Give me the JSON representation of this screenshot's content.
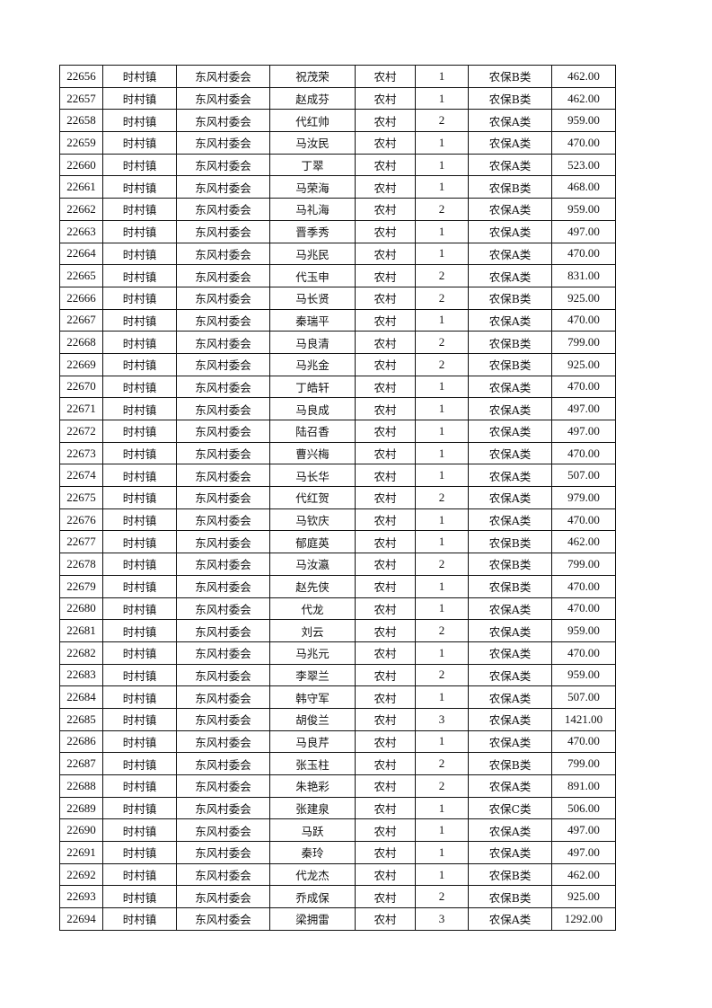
{
  "rows": [
    [
      "22656",
      "时村镇",
      "东风村委会",
      "祝茂荣",
      "农村",
      "1",
      "农保B类",
      "462.00"
    ],
    [
      "22657",
      "时村镇",
      "东风村委会",
      "赵成芬",
      "农村",
      "1",
      "农保B类",
      "462.00"
    ],
    [
      "22658",
      "时村镇",
      "东风村委会",
      "代红帅",
      "农村",
      "2",
      "农保A类",
      "959.00"
    ],
    [
      "22659",
      "时村镇",
      "东风村委会",
      "马汝民",
      "农村",
      "1",
      "农保A类",
      "470.00"
    ],
    [
      "22660",
      "时村镇",
      "东风村委会",
      "丁翠",
      "农村",
      "1",
      "农保A类",
      "523.00"
    ],
    [
      "22661",
      "时村镇",
      "东风村委会",
      "马荣海",
      "农村",
      "1",
      "农保B类",
      "468.00"
    ],
    [
      "22662",
      "时村镇",
      "东风村委会",
      "马礼海",
      "农村",
      "2",
      "农保A类",
      "959.00"
    ],
    [
      "22663",
      "时村镇",
      "东风村委会",
      "晋季秀",
      "农村",
      "1",
      "农保A类",
      "497.00"
    ],
    [
      "22664",
      "时村镇",
      "东风村委会",
      "马兆民",
      "农村",
      "1",
      "农保A类",
      "470.00"
    ],
    [
      "22665",
      "时村镇",
      "东风村委会",
      "代玉申",
      "农村",
      "2",
      "农保A类",
      "831.00"
    ],
    [
      "22666",
      "时村镇",
      "东风村委会",
      "马长贤",
      "农村",
      "2",
      "农保B类",
      "925.00"
    ],
    [
      "22667",
      "时村镇",
      "东风村委会",
      "秦瑞平",
      "农村",
      "1",
      "农保A类",
      "470.00"
    ],
    [
      "22668",
      "时村镇",
      "东风村委会",
      "马良清",
      "农村",
      "2",
      "农保B类",
      "799.00"
    ],
    [
      "22669",
      "时村镇",
      "东风村委会",
      "马兆金",
      "农村",
      "2",
      "农保B类",
      "925.00"
    ],
    [
      "22670",
      "时村镇",
      "东风村委会",
      "丁皓轩",
      "农村",
      "1",
      "农保A类",
      "470.00"
    ],
    [
      "22671",
      "时村镇",
      "东风村委会",
      "马良成",
      "农村",
      "1",
      "农保A类",
      "497.00"
    ],
    [
      "22672",
      "时村镇",
      "东风村委会",
      "陆召香",
      "农村",
      "1",
      "农保A类",
      "497.00"
    ],
    [
      "22673",
      "时村镇",
      "东风村委会",
      "曹兴梅",
      "农村",
      "1",
      "农保A类",
      "470.00"
    ],
    [
      "22674",
      "时村镇",
      "东风村委会",
      "马长华",
      "农村",
      "1",
      "农保A类",
      "507.00"
    ],
    [
      "22675",
      "时村镇",
      "东风村委会",
      "代红贺",
      "农村",
      "2",
      "农保A类",
      "979.00"
    ],
    [
      "22676",
      "时村镇",
      "东风村委会",
      "马钦庆",
      "农村",
      "1",
      "农保A类",
      "470.00"
    ],
    [
      "22677",
      "时村镇",
      "东风村委会",
      "郁庭英",
      "农村",
      "1",
      "农保B类",
      "462.00"
    ],
    [
      "22678",
      "时村镇",
      "东风村委会",
      "马汝瀛",
      "农村",
      "2",
      "农保B类",
      "799.00"
    ],
    [
      "22679",
      "时村镇",
      "东风村委会",
      "赵先侠",
      "农村",
      "1",
      "农保B类",
      "470.00"
    ],
    [
      "22680",
      "时村镇",
      "东风村委会",
      "代龙",
      "农村",
      "1",
      "农保A类",
      "470.00"
    ],
    [
      "22681",
      "时村镇",
      "东风村委会",
      "刘云",
      "农村",
      "2",
      "农保A类",
      "959.00"
    ],
    [
      "22682",
      "时村镇",
      "东风村委会",
      "马兆元",
      "农村",
      "1",
      "农保A类",
      "470.00"
    ],
    [
      "22683",
      "时村镇",
      "东风村委会",
      "李翠兰",
      "农村",
      "2",
      "农保A类",
      "959.00"
    ],
    [
      "22684",
      "时村镇",
      "东风村委会",
      "韩守军",
      "农村",
      "1",
      "农保A类",
      "507.00"
    ],
    [
      "22685",
      "时村镇",
      "东风村委会",
      "胡俊兰",
      "农村",
      "3",
      "农保A类",
      "1421.00"
    ],
    [
      "22686",
      "时村镇",
      "东风村委会",
      "马良芹",
      "农村",
      "1",
      "农保A类",
      "470.00"
    ],
    [
      "22687",
      "时村镇",
      "东风村委会",
      "张玉柱",
      "农村",
      "2",
      "农保B类",
      "799.00"
    ],
    [
      "22688",
      "时村镇",
      "东风村委会",
      "朱艳彩",
      "农村",
      "2",
      "农保A类",
      "891.00"
    ],
    [
      "22689",
      "时村镇",
      "东风村委会",
      "张建泉",
      "农村",
      "1",
      "农保C类",
      "506.00"
    ],
    [
      "22690",
      "时村镇",
      "东风村委会",
      "马跃",
      "农村",
      "1",
      "农保A类",
      "497.00"
    ],
    [
      "22691",
      "时村镇",
      "东风村委会",
      "秦玲",
      "农村",
      "1",
      "农保A类",
      "497.00"
    ],
    [
      "22692",
      "时村镇",
      "东风村委会",
      "代龙杰",
      "农村",
      "1",
      "农保B类",
      "462.00"
    ],
    [
      "22693",
      "时村镇",
      "东风村委会",
      "乔成保",
      "农村",
      "2",
      "农保B类",
      "925.00"
    ],
    [
      "22694",
      "时村镇",
      "东风村委会",
      "梁拥雷",
      "农村",
      "3",
      "农保A类",
      "1292.00"
    ]
  ]
}
